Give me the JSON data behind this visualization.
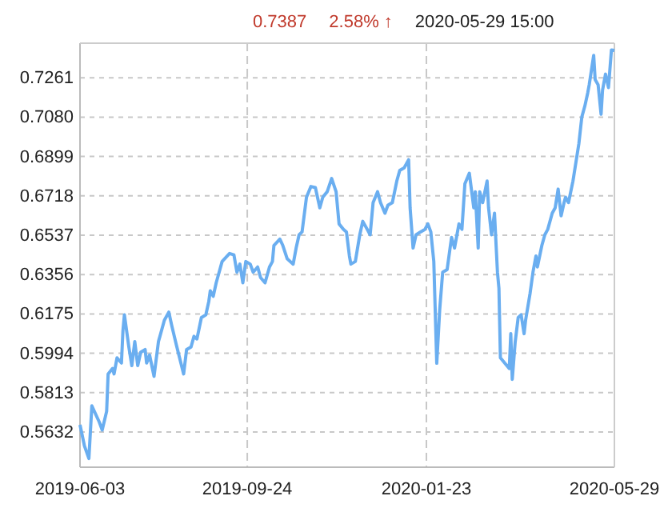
{
  "chart_data": {
    "type": "line",
    "annotations": [
      "0.7387",
      "2.58% ↑",
      "2020-05-29 15:00"
    ],
    "x": [
      "2019-06-03",
      "2019-06-06",
      "2019-06-09",
      "2019-06-11",
      "2019-06-16",
      "2019-06-18",
      "2019-06-21",
      "2019-06-22",
      "2019-06-25",
      "2019-06-26",
      "2019-06-28",
      "2019-07-01",
      "2019-07-02",
      "2019-07-03",
      "2019-07-06",
      "2019-07-08",
      "2019-07-10",
      "2019-07-12",
      "2019-07-14",
      "2019-07-17",
      "2019-07-18",
      "2019-07-20",
      "2019-07-23",
      "2019-07-26",
      "2019-07-27",
      "2019-07-30",
      "2019-08-02",
      "2019-08-04",
      "2019-08-07",
      "2019-08-12",
      "2019-08-14",
      "2019-08-17",
      "2019-08-19",
      "2019-08-21",
      "2019-08-24",
      "2019-08-27",
      "2019-08-29",
      "2019-08-30",
      "2019-09-01",
      "2019-09-03",
      "2019-09-05",
      "2019-09-07",
      "2019-09-12",
      "2019-09-15",
      "2019-09-17",
      "2019-09-19",
      "2019-09-21",
      "2019-09-23",
      "2019-09-26",
      "2019-09-28",
      "2019-10-01",
      "2019-10-03",
      "2019-10-06",
      "2019-10-09",
      "2019-10-11",
      "2019-10-12",
      "2019-10-16",
      "2019-10-18",
      "2019-10-21",
      "2019-10-25",
      "2019-10-27",
      "2019-10-29",
      "2019-10-31",
      "2019-11-03",
      "2019-11-06",
      "2019-11-09",
      "2019-11-12",
      "2019-11-14",
      "2019-11-17",
      "2019-11-20",
      "2019-11-23",
      "2019-11-25",
      "2019-11-28",
      "2019-11-30",
      "2019-12-02",
      "2019-12-03",
      "2019-12-06",
      "2019-12-09",
      "2019-12-11",
      "2019-12-14",
      "2019-12-16",
      "2019-12-18",
      "2019-12-21",
      "2019-12-23",
      "2019-12-26",
      "2019-12-28",
      "2019-12-31",
      "2020-01-03",
      "2020-01-05",
      "2020-01-08",
      "2020-01-11",
      "2020-01-12",
      "2020-01-14",
      "2020-01-16",
      "2020-01-19",
      "2020-01-22",
      "2020-01-24",
      "2020-01-26",
      "2020-01-28",
      "2020-01-30",
      "2020-02-01",
      "2020-02-03",
      "2020-02-06",
      "2020-02-08",
      "2020-02-09",
      "2020-02-11",
      "2020-02-14",
      "2020-02-16",
      "2020-02-18",
      "2020-02-21",
      "2020-02-24",
      "2020-02-25",
      "2020-02-27",
      "2020-02-28",
      "2020-03-01",
      "2020-03-04",
      "2020-03-05",
      "2020-03-07",
      "2020-03-09",
      "2020-03-11",
      "2020-03-12",
      "2020-03-13",
      "2020-03-16",
      "2020-03-19",
      "2020-03-20",
      "2020-03-21",
      "2020-03-23",
      "2020-03-25",
      "2020-03-27",
      "2020-03-29",
      "2020-03-30",
      "2020-04-02",
      "2020-04-04",
      "2020-04-06",
      "2020-04-07",
      "2020-04-10",
      "2020-04-12",
      "2020-04-14",
      "2020-04-17",
      "2020-04-19",
      "2020-04-21",
      "2020-04-23",
      "2020-04-25",
      "2020-04-26",
      "2020-04-28",
      "2020-05-01",
      "2020-05-03",
      "2020-05-05",
      "2020-05-07",
      "2020-05-09",
      "2020-05-11",
      "2020-05-12",
      "2020-05-15",
      "2020-05-16",
      "2020-05-18",
      "2020-05-20",
      "2020-05-21",
      "2020-05-23",
      "2020-05-25",
      "2020-05-27",
      "2020-05-29"
    ],
    "series": [
      {
        "color": "#6aaef0",
        "values": [
          0.5665,
          0.5568,
          0.551,
          0.5752,
          0.5678,
          0.5641,
          0.5727,
          0.5899,
          0.5924,
          0.5899,
          0.5973,
          0.5949,
          0.6097,
          0.6171,
          0.6023,
          0.5937,
          0.6048,
          0.5937,
          0.5999,
          0.6011,
          0.5949,
          0.5986,
          0.5888,
          0.6048,
          0.6072,
          0.6146,
          0.6183,
          0.6121,
          0.6035,
          0.5899,
          0.6011,
          0.6023,
          0.6072,
          0.606,
          0.6158,
          0.6171,
          0.6232,
          0.6281,
          0.6256,
          0.6318,
          0.6367,
          0.6416,
          0.6453,
          0.6446,
          0.6367,
          0.6404,
          0.6318,
          0.6416,
          0.6404,
          0.6367,
          0.6391,
          0.6342,
          0.6318,
          0.6391,
          0.6416,
          0.649,
          0.6519,
          0.649,
          0.6428,
          0.6404,
          0.6478,
          0.6539,
          0.6552,
          0.6712,
          0.6761,
          0.6756,
          0.6663,
          0.6712,
          0.6737,
          0.6798,
          0.6737,
          0.6589,
          0.6564,
          0.6552,
          0.6441,
          0.6404,
          0.6416,
          0.6539,
          0.6601,
          0.6564,
          0.6539,
          0.6687,
          0.6737,
          0.6687,
          0.6638,
          0.6675,
          0.6687,
          0.6786,
          0.6835,
          0.6847,
          0.6884,
          0.6663,
          0.6478,
          0.6539,
          0.6552,
          0.6564,
          0.6589,
          0.6552,
          0.6416,
          0.5948,
          0.6195,
          0.6367,
          0.6379,
          0.6478,
          0.6527,
          0.6478,
          0.6589,
          0.6564,
          0.6773,
          0.6822,
          0.6663,
          0.6737,
          0.6478,
          0.6737,
          0.6687,
          0.6786,
          0.6663,
          0.6539,
          0.6638,
          0.6367,
          0.6293,
          0.5973,
          0.5948,
          0.5924,
          0.6084,
          0.5874,
          0.6047,
          0.6158,
          0.6171,
          0.6084,
          0.6145,
          0.6268,
          0.6367,
          0.6441,
          0.6391,
          0.649,
          0.6539,
          0.6564,
          0.6638,
          0.6663,
          0.6749,
          0.6626,
          0.6687,
          0.6712,
          0.6687,
          0.6786,
          0.6872,
          0.6958,
          0.7081,
          0.713,
          0.7192,
          0.7229,
          0.7364,
          0.7253,
          0.7229,
          0.7093,
          0.7204,
          0.7278,
          0.7216,
          0.7389,
          0.7387
        ]
      }
    ],
    "xlim": [
      "2019-06-03",
      "2020-05-29"
    ],
    "xticks": [
      "2019-06-03",
      "2019-09-24",
      "2020-01-23",
      "2020-05-29"
    ],
    "ylim": [
      0.547,
      0.742
    ],
    "yticks": [
      {
        "value": 0.5632,
        "label": "0.5632"
      },
      {
        "value": 0.5813,
        "label": "0.5813"
      },
      {
        "value": 0.5994,
        "label": "0.5994"
      },
      {
        "value": 0.6175,
        "label": "0.6175"
      },
      {
        "value": 0.6356,
        "label": "0.6356"
      },
      {
        "value": 0.6537,
        "label": "0.6537"
      },
      {
        "value": 0.6718,
        "label": "0.6718"
      },
      {
        "value": 0.6899,
        "label": "0.6899"
      },
      {
        "value": 0.708,
        "label": "0.7080"
      },
      {
        "value": 0.7261,
        "label": "0.7261"
      }
    ],
    "grid": true,
    "marker": "none",
    "line_style": "solid"
  }
}
